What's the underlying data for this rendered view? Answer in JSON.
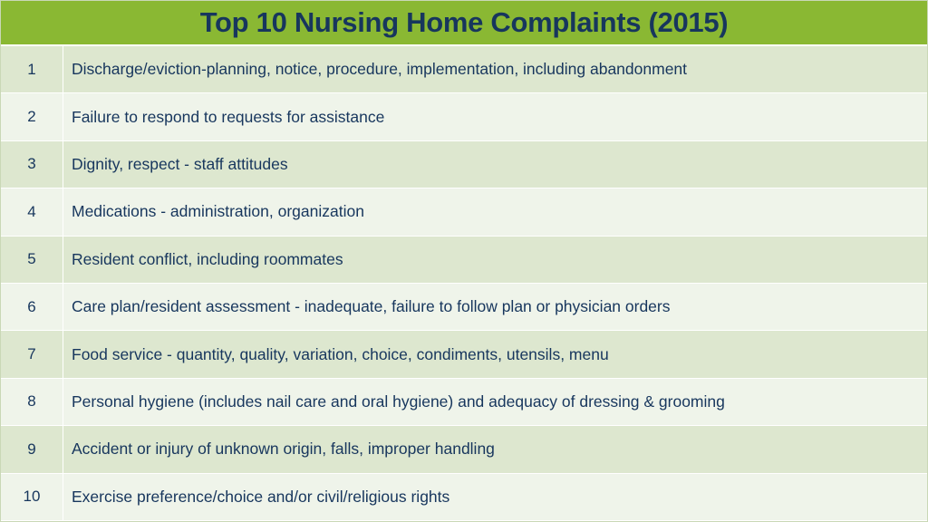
{
  "header": {
    "title": "Top 10 Nursing Home Complaints (2015)"
  },
  "colors": {
    "header_bg": "#8ab833",
    "title_text": "#17365d",
    "row_odd": "#dde7cf",
    "row_even": "#eff4ea"
  },
  "table": {
    "rows": [
      {
        "rank": "1",
        "complaint": "Discharge/eviction-planning, notice, procedure, implementation, including abandonment"
      },
      {
        "rank": "2",
        "complaint": "Failure to respond to requests for assistance"
      },
      {
        "rank": "3",
        "complaint": "Dignity, respect - staff attitudes"
      },
      {
        "rank": "4",
        "complaint": "Medications - administration, organization"
      },
      {
        "rank": "5",
        "complaint": "Resident conflict, including roommates"
      },
      {
        "rank": "6",
        "complaint": "Care plan/resident assessment - inadequate, failure to follow plan or physician orders"
      },
      {
        "rank": "7",
        "complaint": "Food service - quantity, quality, variation, choice, condiments, utensils, menu"
      },
      {
        "rank": "8",
        "complaint": "Personal hygiene (includes nail care and oral hygiene) and adequacy of dressing & grooming"
      },
      {
        "rank": "9",
        "complaint": "Accident or injury of unknown origin, falls, improper handling"
      },
      {
        "rank": "10",
        "complaint": "Exercise preference/choice and/or civil/religious rights"
      }
    ]
  }
}
